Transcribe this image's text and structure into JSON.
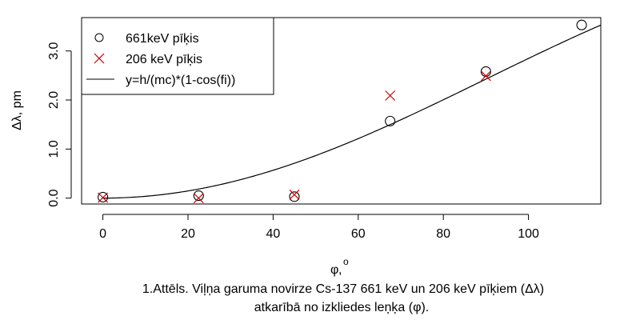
{
  "chart_data": {
    "type": "scatter",
    "xlabel": "φ,°",
    "xlabel_symbol": "φ",
    "xlabel_unit": "o",
    "ylabel": "Δλ, pm",
    "xlim": [
      -5,
      117
    ],
    "ylim": [
      -0.12,
      3.68
    ],
    "x_ticks": [
      0,
      20,
      40,
      60,
      80,
      100
    ],
    "y_ticks": [
      0.0,
      1.0,
      2.0,
      3.0
    ],
    "x_tick_labels": [
      "0",
      "20",
      "40",
      "60",
      "80",
      "100"
    ],
    "y_tick_labels": [
      "0.0",
      "1.0",
      "2.0",
      "3.0"
    ],
    "legend_position": "top-left",
    "series": [
      {
        "name": "661keV pīķis",
        "marker": "circle",
        "color": "#000000",
        "points": [
          {
            "x": 0,
            "y": 0.02
          },
          {
            "x": 22.5,
            "y": 0.05
          },
          {
            "x": 45,
            "y": 0.03
          },
          {
            "x": 67.5,
            "y": 1.57
          },
          {
            "x": 90,
            "y": 2.58
          },
          {
            "x": 112.5,
            "y": 3.53
          }
        ]
      },
      {
        "name": "206 keV pīķis",
        "marker": "cross",
        "color": "#cc0000",
        "points": [
          {
            "x": 0,
            "y": 0.01
          },
          {
            "x": 22.5,
            "y": 0.0
          },
          {
            "x": 45,
            "y": 0.07
          },
          {
            "x": 67.5,
            "y": 2.09
          },
          {
            "x": 90,
            "y": 2.49
          }
        ]
      },
      {
        "name": "y=h/(mc)*(1-cos(fi))",
        "type": "line",
        "color": "#000000",
        "function": "2.426*(1-cos(x deg))",
        "x_range": [
          0,
          117
        ]
      }
    ]
  },
  "caption": {
    "line1": "1.Attēls. Viļņa garuma novirze Cs-137 661 keV un 206 keV pīķiem (Δλ)",
    "line2": "atkarībā no izkliedes leņķa (φ)."
  }
}
